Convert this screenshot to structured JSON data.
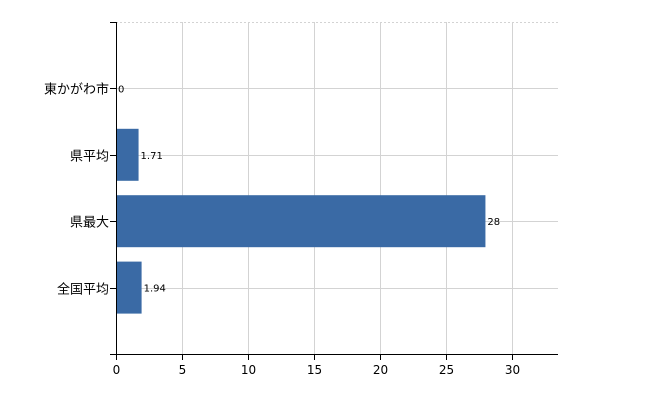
{
  "chart_data": {
    "type": "bar",
    "orientation": "horizontal",
    "categories": [
      "東かがわ市",
      "県平均",
      "県最大",
      "全国平均"
    ],
    "values": [
      0,
      1.71,
      28,
      1.94
    ],
    "data_labels": [
      "0",
      "1.71",
      "28",
      "1.94"
    ],
    "title": "",
    "xlabel": "",
    "ylabel": "",
    "xlim": [
      0,
      33.5
    ],
    "x_ticks": [
      0,
      5,
      10,
      15,
      20,
      25,
      30
    ],
    "grid": true,
    "legend": "none",
    "bar_color": "#3a6aa5",
    "grid_color": "#d3d3d3"
  }
}
